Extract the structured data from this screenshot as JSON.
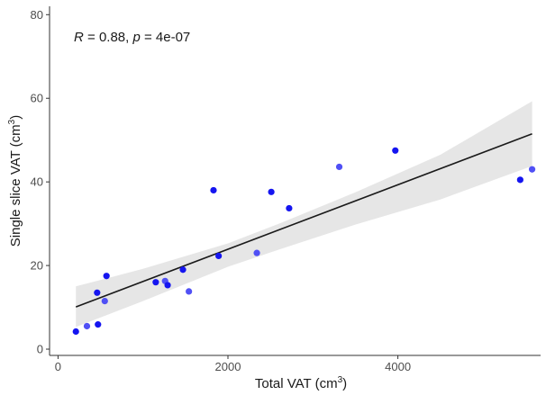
{
  "chart_data": {
    "type": "scatter",
    "xlabel": "Total VAT (cm",
    "xlabel_sup": "3",
    "xlabel_tail": ")",
    "ylabel": "Single slice VAT (cm",
    "ylabel_sup": "3",
    "ylabel_tail": ")",
    "xlim": [
      -100,
      5680
    ],
    "ylim": [
      -1.5,
      82
    ],
    "xticks": [
      0,
      2000,
      4000
    ],
    "yticks": [
      0,
      20,
      40,
      60,
      80
    ],
    "grid": false,
    "annotation": {
      "r_symbol": "R",
      "r_text": " = 0.88, ",
      "p_symbol": "p",
      "p_text": " = 4e-07",
      "placement": "top-left"
    },
    "points": [
      {
        "x": 210,
        "y": 4.2
      },
      {
        "x": 340,
        "y": 5.5
      },
      {
        "x": 470,
        "y": 5.9
      },
      {
        "x": 460,
        "y": 13.5
      },
      {
        "x": 550,
        "y": 11.5
      },
      {
        "x": 570,
        "y": 17.5
      },
      {
        "x": 1150,
        "y": 16.0
      },
      {
        "x": 1260,
        "y": 16.3
      },
      {
        "x": 1290,
        "y": 15.3
      },
      {
        "x": 1470,
        "y": 19.0
      },
      {
        "x": 1540,
        "y": 13.8
      },
      {
        "x": 1830,
        "y": 38.0
      },
      {
        "x": 1890,
        "y": 22.3
      },
      {
        "x": 2340,
        "y": 23.0
      },
      {
        "x": 2510,
        "y": 37.6
      },
      {
        "x": 2720,
        "y": 33.7
      },
      {
        "x": 3310,
        "y": 43.6
      },
      {
        "x": 3970,
        "y": 47.5
      },
      {
        "x": 5440,
        "y": 40.5
      },
      {
        "x": 5580,
        "y": 43.0
      }
    ],
    "regression": {
      "x": [
        210,
        5580
      ],
      "y": [
        10.1,
        51.5
      ]
    },
    "band": {
      "x": [
        210,
        1000,
        2000,
        2600,
        3500,
        4500,
        5580
      ],
      "upper": [
        15.0,
        19.2,
        25.3,
        30.0,
        37.5,
        46.5,
        59.3
      ],
      "lower": [
        5.3,
        11.5,
        19.7,
        23.8,
        29.8,
        35.8,
        43.8
      ]
    },
    "colors": {
      "points": "#1515f0",
      "points_alt": "#5050f5",
      "line": "#1a1a1a",
      "band": "#e6e6e6",
      "panel": "#ffffff",
      "axis": "#333333"
    }
  }
}
